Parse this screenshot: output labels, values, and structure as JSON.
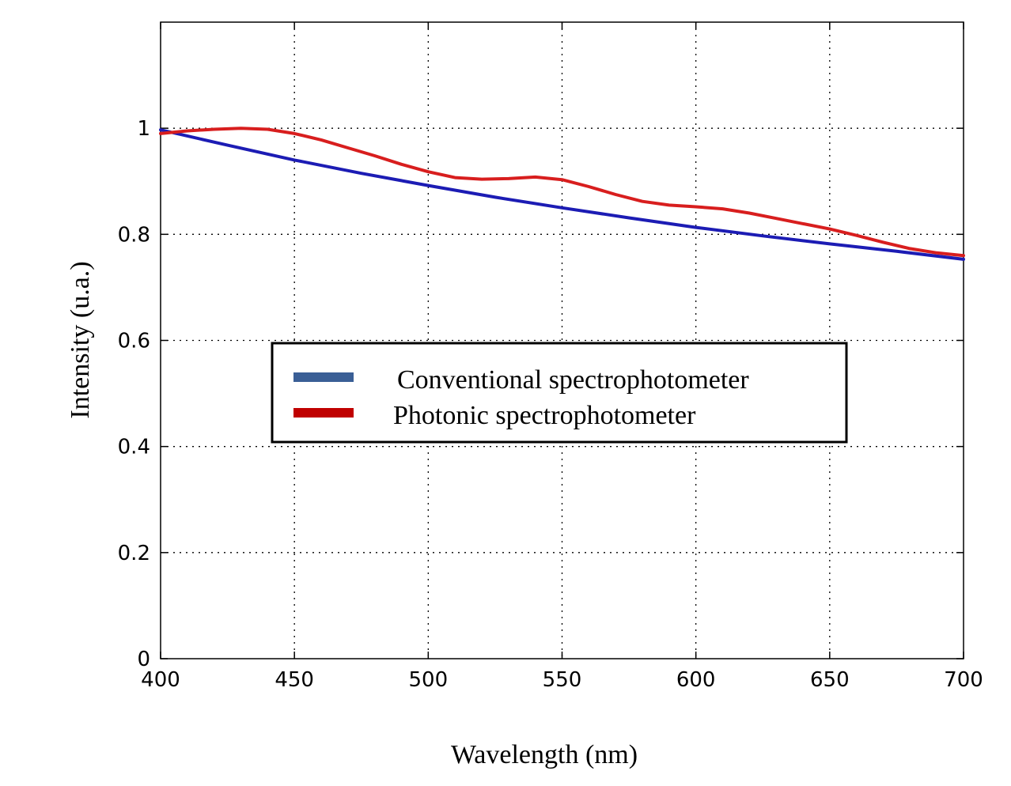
{
  "chart_data": {
    "type": "line",
    "xlabel": "Wavelength (nm)",
    "ylabel": "Intensity  (u.a.)",
    "xlim": [
      400,
      700
    ],
    "ylim": [
      0,
      1.2
    ],
    "xticks": [
      400,
      450,
      500,
      550,
      600,
      650,
      700
    ],
    "yticks": [
      0,
      0.2,
      0.4,
      0.6,
      0.8,
      1
    ],
    "xtick_labels": [
      "400",
      "450",
      "500",
      "550",
      "600",
      "650",
      "700"
    ],
    "ytick_labels": [
      "0",
      "0.2",
      "0.4",
      "0.6",
      "0.8",
      "1"
    ],
    "grid": true,
    "legend_position": "center",
    "series": [
      {
        "name": "Conventional spectrophotometer",
        "color": "#1c1cb4",
        "legend_color": "#3a5f96",
        "x": [
          400,
          425,
          450,
          475,
          500,
          525,
          550,
          575,
          600,
          625,
          650,
          675,
          700
        ],
        "y": [
          0.997,
          0.968,
          0.94,
          0.915,
          0.892,
          0.87,
          0.85,
          0.831,
          0.813,
          0.797,
          0.782,
          0.768,
          0.753
        ]
      },
      {
        "name": "Photonic spectrophotometer",
        "color": "#d81e1e",
        "legend_color": "#c00000",
        "x": [
          400,
          410,
          420,
          430,
          440,
          450,
          460,
          470,
          480,
          490,
          500,
          510,
          520,
          530,
          540,
          550,
          560,
          570,
          580,
          590,
          600,
          610,
          620,
          630,
          640,
          650,
          660,
          670,
          680,
          690,
          700
        ],
        "y": [
          0.99,
          0.995,
          0.998,
          1.0,
          0.998,
          0.99,
          0.978,
          0.963,
          0.948,
          0.932,
          0.918,
          0.907,
          0.904,
          0.905,
          0.908,
          0.903,
          0.89,
          0.875,
          0.862,
          0.855,
          0.852,
          0.848,
          0.84,
          0.83,
          0.82,
          0.81,
          0.798,
          0.785,
          0.773,
          0.765,
          0.76
        ]
      }
    ]
  }
}
